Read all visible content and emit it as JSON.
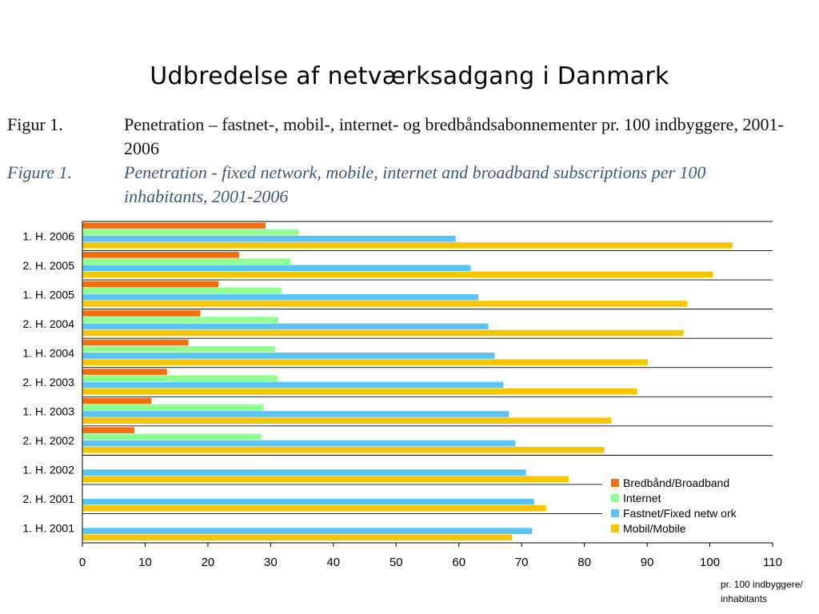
{
  "title": "Udbredelse af netværksadgang i Danmark",
  "figure_da": {
    "label": "Figur 1.",
    "text": "Penetration – fastnet-, mobil-, internet- og bredbåndsabonnementer pr. 100 indbyggere, 2001- 2006"
  },
  "figure_en": {
    "label": "Figure 1.",
    "text": "Penetration - fixed network, mobile, internet and broadband subscriptions per 100 inhabitants, 2001-2006"
  },
  "chart_data": {
    "type": "bar",
    "orientation": "horizontal",
    "categories": [
      "1. H. 2006",
      "2. H. 2005",
      "1. H. 2005",
      "2. H. 2004",
      "1. H. 2004",
      "2. H. 2003",
      "1. H. 2003",
      "2. H. 2002",
      "1. H. 2002",
      "2. H. 2001",
      "1. H. 2001"
    ],
    "series": [
      {
        "name": "Bredbånd/Broadband",
        "color": "#f26f0c",
        "values": [
          29.2,
          25,
          21.7,
          18.8,
          16.9,
          13.5,
          11,
          8.3,
          null,
          null,
          null
        ]
      },
      {
        "name": "Internet",
        "color": "#8fff8f",
        "values": [
          34.5,
          33.2,
          31.7,
          31.2,
          30.7,
          31.1,
          28.9,
          28.5,
          null,
          null,
          null
        ]
      },
      {
        "name": "Fastnet/Fixed netw ork",
        "color": "#5bc4f6",
        "values": [
          59.5,
          61.9,
          63.1,
          64.7,
          65.7,
          67.1,
          68,
          69,
          70.7,
          72,
          71.7
        ]
      },
      {
        "name": "Mobil/Mobile",
        "color": "#f8c600",
        "values": [
          103.6,
          100.5,
          96.4,
          95.8,
          90.1,
          88.4,
          84.3,
          83.2,
          77.5,
          73.9,
          68.5
        ]
      }
    ],
    "xlim": [
      0,
      110
    ],
    "xticks": [
      0,
      10,
      20,
      30,
      40,
      50,
      60,
      70,
      80,
      90,
      100,
      110
    ],
    "xlabel": "pr. 100 indbyggere/ inhabitants",
    "legend_position": "bottom-right",
    "grid": "horizontal separators between categories"
  }
}
